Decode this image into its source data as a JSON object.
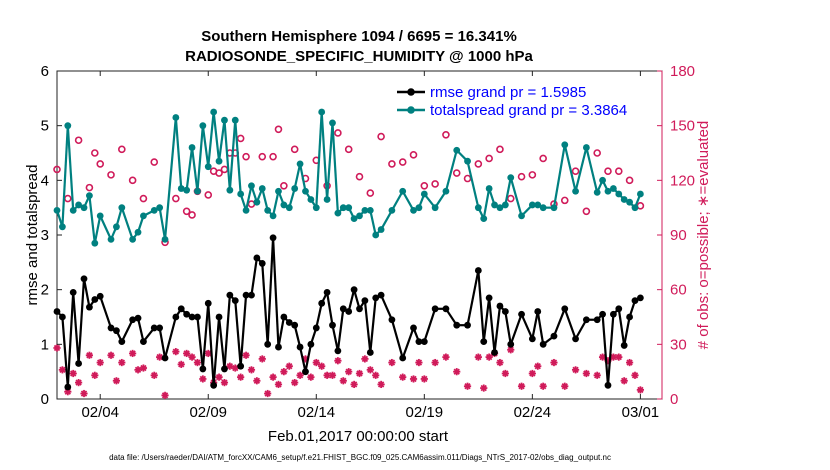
{
  "chart_data": {
    "type": "line",
    "title_line1": "Southern Hemisphere 1094 / 6695 = 16.341%",
    "title_line2": "RADIOSONDE_SPECIFIC_HUMIDITY @ 1000 hPa",
    "xlabel": "Feb.01,2017 00:00:00 start",
    "ylabel_left": "rmse and totalspread",
    "ylabel_right": "# of obs: o=possible; ∗=evaluated",
    "footer": "data file: /Users/raeder/DAI/ATM_forcXX/CAM6_setup/f.e21.FHIST_BGC.f09_025.CAM6assim.011/Diags_NTrS_2017-02/obs_diag_output.nc",
    "xlim": [
      1,
      29
    ],
    "ylim_left": [
      0,
      6
    ],
    "ylim_right": [
      0,
      180
    ],
    "x_ticks": [
      3,
      8,
      13,
      18,
      23,
      28
    ],
    "x_tick_labels": [
      "02/04",
      "02/09",
      "02/14",
      "02/19",
      "02/24",
      "03/01"
    ],
    "y_left_ticks": [
      "0",
      "1",
      "2",
      "3",
      "4",
      "5",
      "6"
    ],
    "y_right_ticks": [
      "0",
      "30",
      "60",
      "90",
      "120",
      "150",
      "180"
    ],
    "legend_position": "top-right",
    "colors": {
      "rmse": "#000000",
      "totalspread": "#008080",
      "counts": "#d01b5a",
      "legend_text": "#0000ff"
    },
    "series": [
      {
        "name": "rmse grand pr = 1.5985",
        "x": [
          1.0,
          1.25,
          1.5,
          1.75,
          2.0,
          2.25,
          2.5,
          2.75,
          3.0,
          3.5,
          3.75,
          4.0,
          4.5,
          4.75,
          5.0,
          5.5,
          5.75,
          6.0,
          6.5,
          6.75,
          7.0,
          7.25,
          7.5,
          7.75,
          8.0,
          8.25,
          8.5,
          8.75,
          9.0,
          9.25,
          9.5,
          9.75,
          10.0,
          10.25,
          10.5,
          10.75,
          11.0,
          11.25,
          11.5,
          11.75,
          12.0,
          12.25,
          12.5,
          12.75,
          13.0,
          13.25,
          13.5,
          13.75,
          14.0,
          14.25,
          14.5,
          14.75,
          15.0,
          15.25,
          15.5,
          15.75,
          16.0,
          16.5,
          17.0,
          17.5,
          17.75,
          18.0,
          18.5,
          19.0,
          19.5,
          20.0,
          20.5,
          20.75,
          21.0,
          21.25,
          21.5,
          21.75,
          22.0,
          22.5,
          23.0,
          23.25,
          23.5,
          24.0,
          24.5,
          25.0,
          25.5,
          26.0,
          26.25,
          26.5,
          26.75,
          27.0,
          27.25,
          27.5,
          27.75,
          28.0
        ],
        "values": [
          1.6,
          1.5,
          0.22,
          1.95,
          0.65,
          2.2,
          1.68,
          1.82,
          1.88,
          1.3,
          1.25,
          1.05,
          1.45,
          1.48,
          1.05,
          1.3,
          1.3,
          0.75,
          1.5,
          1.65,
          1.55,
          1.5,
          1.5,
          0.55,
          1.75,
          0.25,
          1.5,
          0.55,
          1.9,
          1.8,
          0.6,
          1.9,
          1.9,
          2.58,
          2.48,
          1.0,
          2.95,
          0.95,
          1.5,
          1.4,
          1.35,
          0.95,
          0.5,
          1.0,
          1.3,
          1.75,
          1.95,
          1.35,
          0.88,
          1.65,
          1.6,
          2.0,
          1.65,
          1.8,
          0.85,
          1.85,
          1.9,
          1.45,
          0.75,
          1.3,
          1.05,
          1.05,
          1.65,
          1.65,
          1.35,
          1.35,
          2.35,
          1.05,
          1.85,
          0.85,
          1.7,
          1.6,
          1.0,
          1.55,
          1.1,
          1.6,
          1.0,
          1.15,
          1.65,
          1.1,
          1.45,
          1.45,
          1.55,
          0.25,
          1.55,
          1.65,
          0.98,
          1.5,
          1.8,
          1.85
        ]
      },
      {
        "name": "totalspread grand pr = 3.3864",
        "x": [
          1.0,
          1.25,
          1.5,
          1.75,
          2.0,
          2.25,
          2.5,
          2.75,
          3.0,
          3.5,
          3.75,
          4.0,
          4.5,
          4.75,
          5.0,
          5.5,
          5.75,
          6.0,
          6.5,
          6.75,
          7.0,
          7.25,
          7.5,
          7.75,
          8.0,
          8.25,
          8.5,
          8.75,
          9.0,
          9.25,
          9.5,
          9.75,
          10.0,
          10.25,
          10.5,
          10.75,
          11.0,
          11.25,
          11.5,
          11.75,
          12.0,
          12.25,
          12.5,
          12.75,
          13.0,
          13.25,
          13.5,
          13.75,
          14.0,
          14.25,
          14.5,
          14.75,
          15.0,
          15.25,
          15.5,
          15.75,
          16.0,
          16.5,
          17.0,
          17.5,
          17.75,
          18.0,
          18.5,
          19.0,
          19.5,
          20.0,
          20.5,
          20.75,
          21.0,
          21.25,
          21.5,
          21.75,
          22.0,
          22.5,
          23.0,
          23.25,
          23.5,
          24.0,
          24.5,
          25.0,
          25.5,
          26.0,
          26.25,
          26.5,
          26.75,
          27.0,
          27.25,
          27.5,
          27.75,
          28.0
        ],
        "values": [
          3.45,
          3.15,
          5.0,
          3.45,
          3.55,
          3.5,
          3.72,
          2.85,
          3.35,
          2.92,
          3.15,
          3.5,
          2.92,
          3.05,
          3.35,
          3.45,
          3.5,
          2.92,
          5.15,
          3.85,
          3.82,
          4.6,
          3.8,
          5.0,
          4.25,
          5.25,
          4.35,
          5.1,
          3.82,
          5.1,
          3.75,
          3.45,
          3.9,
          3.6,
          3.85,
          3.45,
          3.35,
          3.8,
          3.55,
          3.5,
          3.85,
          4.3,
          3.8,
          3.65,
          3.5,
          5.25,
          3.65,
          5.05,
          3.4,
          3.5,
          3.5,
          3.3,
          3.35,
          3.45,
          3.45,
          3.0,
          3.1,
          3.45,
          3.8,
          3.45,
          3.5,
          3.75,
          3.5,
          3.8,
          4.55,
          4.35,
          3.5,
          3.3,
          3.85,
          3.55,
          3.5,
          3.55,
          4.05,
          3.35,
          3.55,
          3.55,
          3.5,
          3.5,
          4.65,
          3.8,
          4.6,
          3.78,
          4.0,
          3.8,
          3.85,
          3.75,
          3.65,
          3.6,
          3.5,
          3.75
        ]
      },
      {
        "name": "possible",
        "x": [
          1.0,
          1.5,
          2.0,
          2.5,
          2.75,
          3.0,
          3.5,
          4.0,
          4.5,
          5.0,
          5.5,
          6.0,
          6.5,
          7.0,
          7.25,
          7.5,
          8.0,
          8.25,
          8.5,
          8.75,
          9.0,
          9.25,
          9.5,
          9.75,
          10.0,
          10.5,
          11.0,
          11.25,
          11.5,
          12.0,
          12.5,
          13.0,
          13.5,
          14.0,
          14.5,
          15.0,
          15.5,
          16.0,
          16.5,
          17.0,
          17.5,
          18.0,
          18.5,
          19.0,
          19.5,
          20.0,
          20.5,
          21.0,
          21.5,
          22.0,
          22.5,
          23.0,
          23.5,
          24.0,
          24.5,
          25.0,
          25.5,
          26.0,
          26.5,
          27.0,
          27.5,
          28.0
        ],
        "values": [
          126,
          110,
          142,
          116,
          135,
          129,
          123,
          137,
          120,
          110,
          130,
          86,
          110,
          103,
          101,
          114,
          112,
          125,
          124,
          126,
          135,
          135,
          143,
          133,
          107,
          133,
          133,
          148,
          117,
          137,
          121,
          131,
          117,
          146,
          137,
          122,
          113,
          144,
          129,
          130,
          134,
          117,
          118,
          145,
          124,
          121,
          129,
          132,
          137,
          110,
          122,
          123,
          132,
          107,
          109,
          125,
          103,
          135,
          125,
          125,
          120,
          106
        ]
      },
      {
        "name": "evaluated",
        "x": [
          1.0,
          1.25,
          1.5,
          1.75,
          2.0,
          2.25,
          2.5,
          2.75,
          3.0,
          3.5,
          3.75,
          4.0,
          4.5,
          4.75,
          5.0,
          5.5,
          5.75,
          6.0,
          6.5,
          6.75,
          7.0,
          7.25,
          7.5,
          7.75,
          8.0,
          8.25,
          8.5,
          8.75,
          9.0,
          9.25,
          9.5,
          9.75,
          10.0,
          10.25,
          10.5,
          10.75,
          11.0,
          11.25,
          11.5,
          11.75,
          12.0,
          12.25,
          12.5,
          12.75,
          13.0,
          13.25,
          13.5,
          13.75,
          14.0,
          14.25,
          14.5,
          14.75,
          15.0,
          15.25,
          15.5,
          15.75,
          16.0,
          16.5,
          17.0,
          17.5,
          17.75,
          18.0,
          18.5,
          19.0,
          19.5,
          20.0,
          20.5,
          20.75,
          21.0,
          21.25,
          21.5,
          21.75,
          22.0,
          22.5,
          23.0,
          23.25,
          23.5,
          24.0,
          24.5,
          25.0,
          25.5,
          26.0,
          26.25,
          26.5,
          26.75,
          27.0,
          27.25,
          27.5,
          27.75,
          28.0
        ],
        "values": [
          28,
          16,
          4,
          14,
          9,
          3,
          24,
          13,
          20,
          24,
          10,
          20,
          25,
          16,
          17,
          13,
          23,
          2,
          26,
          19,
          25,
          23,
          20,
          11,
          25,
          9,
          12,
          9,
          18,
          17,
          12,
          24,
          16,
          10,
          22,
          3,
          12,
          8,
          15,
          18,
          9,
          13,
          22,
          12,
          20,
          18,
          13,
          13,
          21,
          10,
          15,
          8,
          14,
          22,
          16,
          13,
          8,
          20,
          12,
          11,
          20,
          11,
          20,
          23,
          15,
          7,
          23,
          6,
          23,
          25,
          20,
          14,
          27,
          7,
          14,
          18,
          7,
          20,
          7,
          16,
          14,
          13,
          23,
          21,
          23,
          23,
          10,
          20,
          13,
          5
        ]
      }
    ]
  }
}
